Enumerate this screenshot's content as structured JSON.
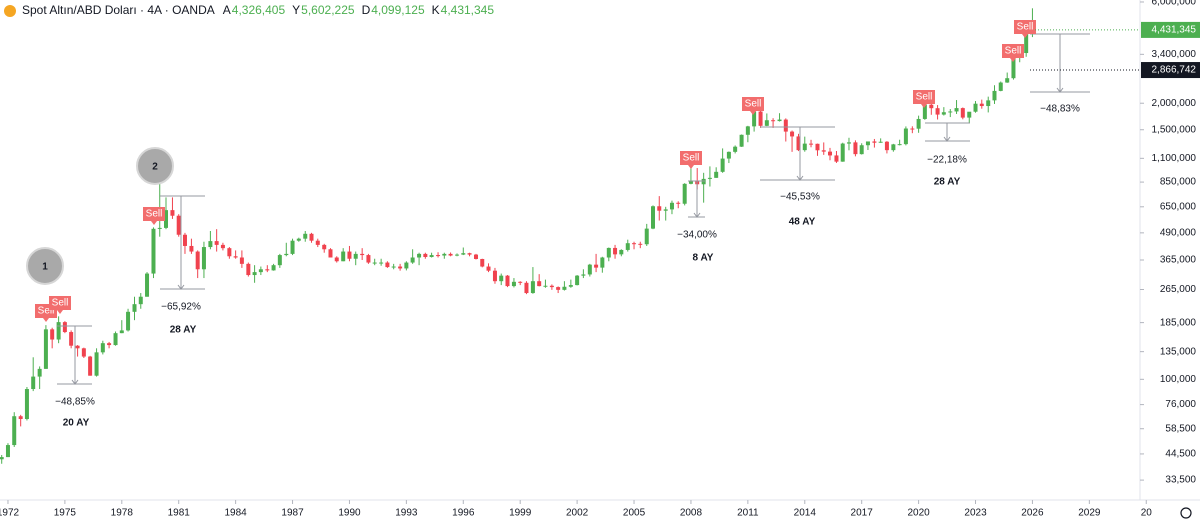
{
  "header": {
    "title": "Spot Altın/ABD Doları · 4A · OANDA",
    "ohlc": [
      {
        "label": "A",
        "value": "4,326,405"
      },
      {
        "label": "Y",
        "value": "5,602,225"
      },
      {
        "label": "D",
        "value": "4,099,125"
      },
      {
        "label": "K",
        "value": "4,431,345"
      }
    ]
  },
  "chart_data": {
    "type": "candlestick",
    "log_scale": true,
    "grid": false,
    "up_color": "#4caf50",
    "down_color": "#f0424e",
    "xlim": [
      1971.58,
      2031.67
    ],
    "xticks": [
      1972,
      1975,
      1978,
      1981,
      1984,
      1987,
      1990,
      1993,
      1996,
      1999,
      2002,
      2005,
      2008,
      2011,
      2014,
      2017,
      2020,
      2023,
      2026,
      2029,
      {
        "value": 2032,
        "label": "20"
      }
    ],
    "ylim": [
      28.5,
      6130
    ],
    "yticks": [
      {
        "value": 6000,
        "label": "6,000,000"
      },
      {
        "value": 3400,
        "label": "3,400,000"
      },
      {
        "value": 2000,
        "label": "2,000,000"
      },
      {
        "value": 1500,
        "label": "1,500,000"
      },
      {
        "value": 1100,
        "label": "1,100,000"
      },
      {
        "value": 850,
        "label": "850,000"
      },
      {
        "value": 650,
        "label": "650,000"
      },
      {
        "value": 490,
        "label": "490,000"
      },
      {
        "value": 365,
        "label": "365,000"
      },
      {
        "value": 265,
        "label": "265,000"
      },
      {
        "value": 185,
        "label": "185,000"
      },
      {
        "value": 135,
        "label": "135,000"
      },
      {
        "value": 100,
        "label": "100,000"
      },
      {
        "value": 76,
        "label": "76,000"
      },
      {
        "value": 58.5,
        "label": "58,500"
      },
      {
        "value": 44.5,
        "label": "44,500"
      },
      {
        "value": 33.5,
        "label": "33,500"
      }
    ],
    "last_price": {
      "value": 4431.345,
      "label": "4,431,345"
    },
    "marker_price": {
      "value": 2866.742,
      "label": "2,866,742"
    },
    "x": [
      1971.67,
      1972,
      1972.33,
      1972.67,
      1973,
      1973.33,
      1973.67,
      1974,
      1974.33,
      1974.67,
      1975,
      1975.33,
      1975.67,
      1976,
      1976.33,
      1976.67,
      1977,
      1977.33,
      1977.67,
      1978,
      1978.33,
      1978.67,
      1979,
      1979.33,
      1979.67,
      1980,
      1980.33,
      1980.67,
      1981,
      1981.33,
      1981.67,
      1982,
      1982.33,
      1982.67,
      1983,
      1983.33,
      1983.67,
      1984,
      1984.33,
      1984.67,
      1985,
      1985.33,
      1985.67,
      1986,
      1986.33,
      1986.67,
      1987,
      1987.33,
      1987.67,
      1988,
      1988.33,
      1988.67,
      1989,
      1989.33,
      1989.67,
      1990,
      1990.33,
      1990.67,
      1991,
      1991.33,
      1991.67,
      1992,
      1992.33,
      1992.67,
      1993,
      1993.33,
      1993.67,
      1994,
      1994.33,
      1994.67,
      1995,
      1995.33,
      1995.67,
      1996,
      1996.33,
      1996.67,
      1997,
      1997.33,
      1997.67,
      1998,
      1998.33,
      1998.67,
      1999,
      1999.33,
      1999.67,
      2000,
      2000.33,
      2000.67,
      2001,
      2001.33,
      2001.67,
      2002,
      2002.33,
      2002.67,
      2003,
      2003.33,
      2003.67,
      2004,
      2004.33,
      2004.67,
      2005,
      2005.33,
      2005.67,
      2006,
      2006.33,
      2006.67,
      2007,
      2007.33,
      2007.67,
      2008,
      2008.33,
      2008.67,
      2009,
      2009.33,
      2009.67,
      2010,
      2010.33,
      2010.67,
      2011,
      2011.33,
      2011.67,
      2012,
      2012.33,
      2012.67,
      2013,
      2013.33,
      2013.67,
      2014,
      2014.33,
      2014.67,
      2015,
      2015.33,
      2015.67,
      2016,
      2016.33,
      2016.67,
      2017,
      2017.33,
      2017.67,
      2018,
      2018.33,
      2018.67,
      2019,
      2019.33,
      2019.67,
      2020,
      2020.33,
      2020.67,
      2021,
      2021.33,
      2021.67,
      2022,
      2022.33,
      2022.67,
      2023,
      2023.33,
      2023.67,
      2024,
      2024.33,
      2024.67,
      2025,
      2025.33,
      2025.67,
      2026
    ],
    "ohlc": [
      [
        42,
        44,
        40,
        43
      ],
      [
        43,
        50,
        43,
        49
      ],
      [
        49,
        70,
        48,
        67
      ],
      [
        67,
        68,
        60,
        65
      ],
      [
        65,
        92,
        64,
        90
      ],
      [
        90,
        127,
        88,
        103
      ],
      [
        103,
        115,
        90,
        112
      ],
      [
        112,
        180,
        112,
        172
      ],
      [
        172,
        175,
        140,
        154
      ],
      [
        154,
        198,
        148,
        186
      ],
      [
        186,
        188,
        165,
        167
      ],
      [
        167,
        170,
        140,
        144
      ],
      [
        144,
        145,
        128,
        140
      ],
      [
        140,
        141,
        126,
        128
      ],
      [
        128,
        129,
        104,
        104
      ],
      [
        104,
        140,
        103,
        134
      ],
      [
        134,
        152,
        131,
        148
      ],
      [
        148,
        150,
        140,
        145
      ],
      [
        145,
        168,
        144,
        165
      ],
      [
        165,
        190,
        165,
        170
      ],
      [
        170,
        215,
        168,
        208
      ],
      [
        208,
        245,
        190,
        226
      ],
      [
        226,
        255,
        215,
        245
      ],
      [
        245,
        320,
        245,
        315
      ],
      [
        315,
        520,
        300,
        512
      ],
      [
        512,
        850,
        470,
        517
      ],
      [
        517,
        720,
        510,
        627
      ],
      [
        627,
        720,
        570,
        590
      ],
      [
        590,
        600,
        470,
        480
      ],
      [
        480,
        490,
        390,
        425
      ],
      [
        425,
        460,
        390,
        400
      ],
      [
        400,
        405,
        300,
        330
      ],
      [
        330,
        445,
        300,
        420
      ],
      [
        420,
        500,
        410,
        448
      ],
      [
        448,
        510,
        400,
        430
      ],
      [
        430,
        440,
        405,
        415
      ],
      [
        415,
        420,
        370,
        380
      ],
      [
        380,
        405,
        370,
        375
      ],
      [
        375,
        405,
        335,
        350
      ],
      [
        350,
        355,
        305,
        310
      ],
      [
        310,
        345,
        285,
        320
      ],
      [
        320,
        340,
        310,
        330
      ],
      [
        330,
        345,
        320,
        326
      ],
      [
        326,
        350,
        325,
        345
      ],
      [
        345,
        390,
        335,
        385
      ],
      [
        385,
        440,
        380,
        390
      ],
      [
        390,
        460,
        385,
        450
      ],
      [
        450,
        465,
        445,
        460
      ],
      [
        460,
        500,
        445,
        485
      ],
      [
        485,
        490,
        440,
        450
      ],
      [
        450,
        460,
        420,
        430
      ],
      [
        430,
        435,
        395,
        410
      ],
      [
        410,
        415,
        375,
        375
      ],
      [
        375,
        380,
        355,
        360
      ],
      [
        360,
        415,
        360,
        400
      ],
      [
        400,
        425,
        360,
        370
      ],
      [
        370,
        400,
        345,
        390
      ],
      [
        390,
        415,
        365,
        385
      ],
      [
        385,
        390,
        350,
        355
      ],
      [
        355,
        370,
        345,
        355
      ],
      [
        355,
        370,
        343,
        355
      ],
      [
        355,
        360,
        335,
        338
      ],
      [
        338,
        350,
        330,
        340
      ],
      [
        340,
        350,
        325,
        333
      ],
      [
        333,
        360,
        326,
        355
      ],
      [
        355,
        410,
        350,
        375
      ],
      [
        375,
        395,
        345,
        390
      ],
      [
        390,
        395,
        370,
        377
      ],
      [
        377,
        395,
        375,
        385
      ],
      [
        385,
        397,
        375,
        383
      ],
      [
        383,
        395,
        370,
        390
      ],
      [
        390,
        396,
        380,
        383
      ],
      [
        383,
        392,
        380,
        387
      ],
      [
        387,
        418,
        385,
        393
      ],
      [
        393,
        395,
        380,
        387
      ],
      [
        387,
        390,
        367,
        369
      ],
      [
        369,
        370,
        337,
        340
      ],
      [
        340,
        352,
        320,
        325
      ],
      [
        325,
        335,
        282,
        290
      ],
      [
        290,
        315,
        278,
        308
      ],
      [
        308,
        310,
        272,
        275
      ],
      [
        275,
        300,
        271,
        288
      ],
      [
        288,
        290,
        278,
        285
      ],
      [
        285,
        290,
        252,
        255
      ],
      [
        255,
        338,
        253,
        290
      ],
      [
        290,
        313,
        274,
        275
      ],
      [
        275,
        295,
        270,
        276
      ],
      [
        276,
        280,
        264,
        272
      ],
      [
        272,
        274,
        255,
        264
      ],
      [
        264,
        290,
        262,
        273
      ],
      [
        273,
        295,
        270,
        278
      ],
      [
        278,
        310,
        277,
        308
      ],
      [
        308,
        330,
        300,
        312
      ],
      [
        312,
        350,
        305,
        347
      ],
      [
        347,
        390,
        320,
        336
      ],
      [
        336,
        378,
        318,
        375
      ],
      [
        375,
        418,
        360,
        416
      ],
      [
        416,
        430,
        370,
        388
      ],
      [
        388,
        410,
        380,
        407
      ],
      [
        407,
        455,
        400,
        438
      ],
      [
        438,
        445,
        410,
        435
      ],
      [
        435,
        445,
        415,
        433
      ],
      [
        433,
        540,
        425,
        513
      ],
      [
        513,
        660,
        510,
        654
      ],
      [
        654,
        730,
        560,
        623
      ],
      [
        623,
        650,
        560,
        632
      ],
      [
        632,
        695,
        600,
        679
      ],
      [
        679,
        690,
        640,
        672
      ],
      [
        672,
        840,
        660,
        834
      ],
      [
        834,
        1033,
        830,
        865
      ],
      [
        865,
        990,
        785,
        830
      ],
      [
        830,
        940,
        680,
        880
      ],
      [
        880,
        1008,
        810,
        890
      ],
      [
        890,
        998,
        890,
        950
      ],
      [
        950,
        1225,
        940,
        1097
      ],
      [
        1097,
        1185,
        1045,
        1180
      ],
      [
        1180,
        1265,
        1160,
        1248
      ],
      [
        1248,
        1425,
        1245,
        1420
      ],
      [
        1420,
        1565,
        1310,
        1556
      ],
      [
        1556,
        1920,
        1470,
        1828
      ],
      [
        1828,
        1850,
        1530,
        1565
      ],
      [
        1565,
        1790,
        1560,
        1663
      ],
      [
        1663,
        1700,
        1530,
        1648
      ],
      [
        1648,
        1795,
        1640,
        1675
      ],
      [
        1675,
        1697,
        1320,
        1470
      ],
      [
        1470,
        1487,
        1180,
        1395
      ],
      [
        1395,
        1435,
        1190,
        1202
      ],
      [
        1202,
        1392,
        1182,
        1290
      ],
      [
        1290,
        1345,
        1240,
        1288
      ],
      [
        1288,
        1290,
        1130,
        1200
      ],
      [
        1200,
        1307,
        1142,
        1183
      ],
      [
        1183,
        1232,
        1077,
        1135
      ],
      [
        1135,
        1191,
        1046,
        1061
      ],
      [
        1061,
        1303,
        1060,
        1291
      ],
      [
        1291,
        1375,
        1200,
        1308
      ],
      [
        1308,
        1337,
        1124,
        1151
      ],
      [
        1151,
        1295,
        1146,
        1268
      ],
      [
        1268,
        1298,
        1204,
        1321
      ],
      [
        1321,
        1357,
        1236,
        1303
      ],
      [
        1303,
        1366,
        1302,
        1317
      ],
      [
        1317,
        1326,
        1160,
        1202
      ],
      [
        1202,
        1287,
        1182,
        1280
      ],
      [
        1280,
        1346,
        1266,
        1283
      ],
      [
        1283,
        1555,
        1266,
        1520
      ],
      [
        1520,
        1557,
        1445,
        1517
      ],
      [
        1517,
        1748,
        1451,
        1686
      ],
      [
        1686,
        2075,
        1670,
        1968
      ],
      [
        1968,
        1993,
        1764,
        1895
      ],
      [
        1895,
        1960,
        1676,
        1768
      ],
      [
        1768,
        1917,
        1750,
        1814
      ],
      [
        1814,
        1878,
        1721,
        1829
      ],
      [
        1829,
        2070,
        1780,
        1897
      ],
      [
        1897,
        1910,
        1680,
        1711
      ],
      [
        1711,
        1805,
        1615,
        1824
      ],
      [
        1824,
        2048,
        1804,
        1990
      ],
      [
        1990,
        2080,
        1885,
        1940
      ],
      [
        1940,
        2148,
        1810,
        2063
      ],
      [
        2063,
        2431,
        1984,
        2286
      ],
      [
        2286,
        2531,
        2277,
        2503
      ],
      [
        2503,
        2790,
        2495,
        2624
      ],
      [
        2624,
        3500,
        2584,
        3288
      ],
      [
        3288,
        3452,
        3120,
        3448
      ],
      [
        3448,
        4381,
        3311,
        4320
      ],
      [
        4326.405,
        5602.225,
        4099.125,
        4431.345
      ]
    ],
    "annotations": {
      "sell_tags": [
        "Sell",
        "Sell",
        "Sell",
        "Sell",
        "Sell",
        "Sell",
        "Sell",
        "Sell"
      ],
      "measures": [
        "−48,85%",
        "−65,92%",
        "−34,00%",
        "−45,53%",
        "−22,18%",
        "−48,83%"
      ],
      "durations": [
        "20 AY",
        "28 AY",
        "8 AY",
        "48 AY",
        "28 AY"
      ],
      "circles": [
        "1",
        "2"
      ]
    }
  }
}
